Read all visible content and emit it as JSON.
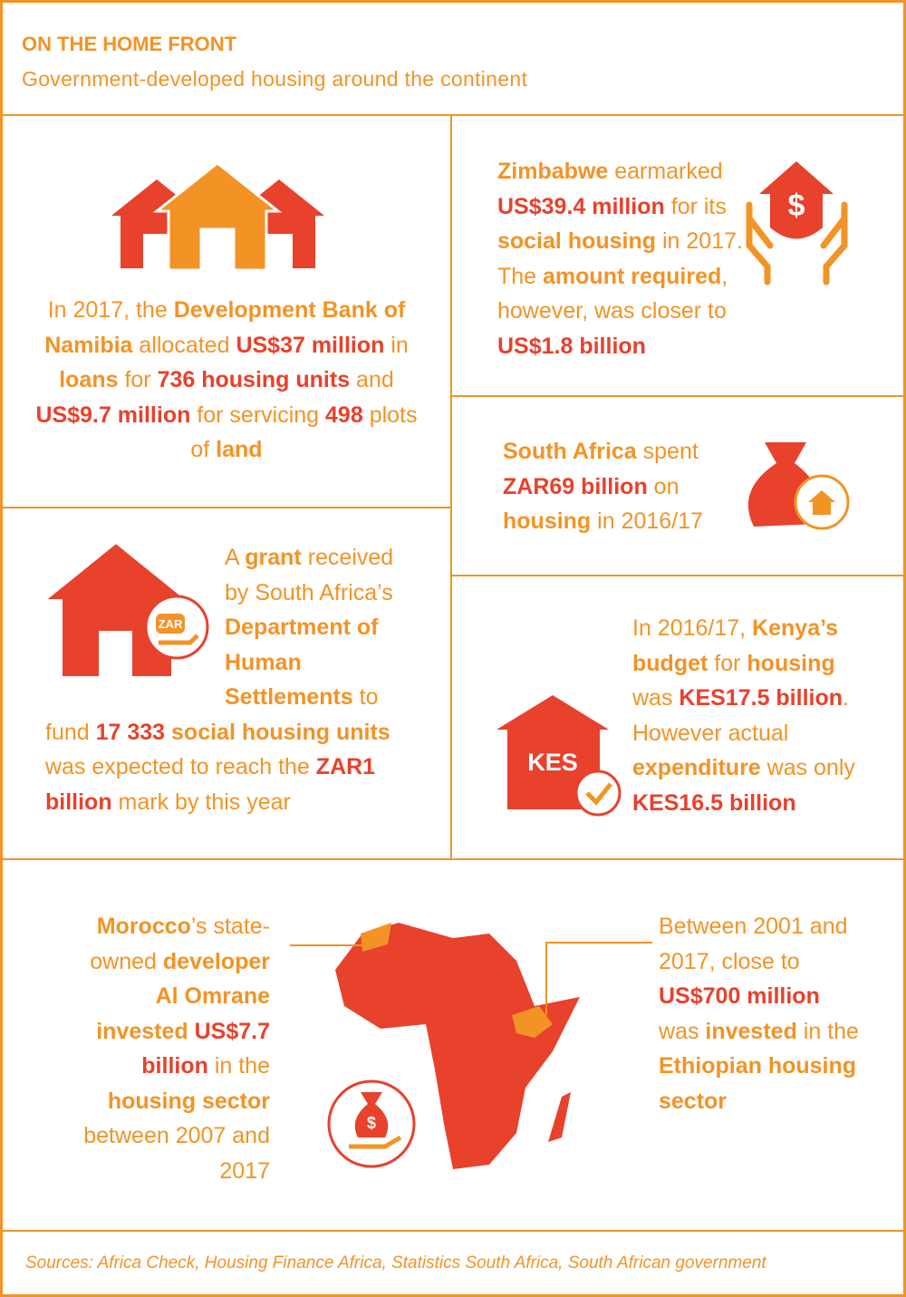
{
  "header": {
    "title": "ON THE HOME FRONT",
    "subtitle": "Government-developed housing around the continent"
  },
  "panels": [
    {
      "runs": [
        {
          "text": "In 2017, the ",
          "color": "#f39325",
          "bold": false
        },
        {
          "text": "Development Bank of Namibia",
          "color": "#f39325",
          "bold": true
        },
        {
          "text": " allocated ",
          "color": "#f39325",
          "bold": false
        },
        {
          "text": "US$37 million",
          "color": "#e8412c",
          "bold": true
        },
        {
          "text": " in ",
          "color": "#f39325",
          "bold": false
        },
        {
          "text": "loans",
          "color": "#f39325",
          "bold": true
        },
        {
          "text": " for ",
          "color": "#f39325",
          "bold": false
        },
        {
          "text": "736 housing units",
          "color": "#e8412c",
          "bold": true
        },
        {
          "text": " and ",
          "color": "#f39325",
          "bold": false
        },
        {
          "text": "US$9.7 million",
          "color": "#e8412c",
          "bold": true
        },
        {
          "text": " for servicing ",
          "color": "#f39325",
          "bold": false
        },
        {
          "text": "498",
          "color": "#e8412c",
          "bold": true
        },
        {
          "text": " plots of ",
          "color": "#f39325",
          "bold": false
        },
        {
          "text": "land",
          "color": "#f39325",
          "bold": true
        }
      ]
    },
    {
      "icon_label": "$",
      "runs": [
        {
          "text": "Zimbabwe",
          "color": "#f39325",
          "bold": true
        },
        {
          "text": " earmarked ",
          "color": "#f39325",
          "bold": false
        },
        {
          "text": "US$39.4 million",
          "color": "#e8412c",
          "bold": true
        },
        {
          "text": " for its ",
          "color": "#f39325",
          "bold": false
        },
        {
          "text": "social housing",
          "color": "#f39325",
          "bold": true
        },
        {
          "text": " in 2017. The ",
          "color": "#f39325",
          "bold": false
        },
        {
          "text": "amount required",
          "color": "#f39325",
          "bold": true
        },
        {
          "text": ", however, was closer to ",
          "color": "#f39325",
          "bold": false
        },
        {
          "text": "US$1.8 billion",
          "color": "#e8412c",
          "bold": true
        }
      ]
    },
    {
      "runs": [
        {
          "text": "South Africa",
          "color": "#f39325",
          "bold": true
        },
        {
          "text": " spent ",
          "color": "#f39325",
          "bold": false
        },
        {
          "text": "ZAR69 billion",
          "color": "#e8412c",
          "bold": true
        },
        {
          "text": " on ",
          "color": "#f39325",
          "bold": false
        },
        {
          "text": "housing",
          "color": "#f39325",
          "bold": true
        },
        {
          "text": " in 2016/17",
          "color": "#f39325",
          "bold": false
        }
      ]
    },
    {
      "icon_label": "ZAR",
      "runs": [
        {
          "text": "A ",
          "color": "#f39325",
          "bold": false
        },
        {
          "text": "grant",
          "color": "#f39325",
          "bold": true
        },
        {
          "text": " received by South Africa’s ",
          "color": "#f39325",
          "bold": false
        },
        {
          "text": "Department of Human Settlements",
          "color": "#f39325",
          "bold": true
        },
        {
          "text": " to fund ",
          "color": "#f39325",
          "bold": false
        },
        {
          "text": "17 333",
          "color": "#e8412c",
          "bold": true
        },
        {
          "text": " social housing units",
          "color": "#f39325",
          "bold": true
        },
        {
          "text": " was expected to reach the ",
          "color": "#f39325",
          "bold": false
        },
        {
          "text": "ZAR1 billion",
          "color": "#e8412c",
          "bold": true
        },
        {
          "text": " mark by this year",
          "color": "#f39325",
          "bold": false
        }
      ]
    },
    {
      "icon_label": "KES",
      "runs": [
        {
          "text": "In 2016/17, ",
          "color": "#f39325",
          "bold": false
        },
        {
          "text": "Kenya’s budget",
          "color": "#f39325",
          "bold": true
        },
        {
          "text": " for ",
          "color": "#f39325",
          "bold": false
        },
        {
          "text": "housing",
          "color": "#f39325",
          "bold": true
        },
        {
          "text": " was ",
          "color": "#f39325",
          "bold": false
        },
        {
          "text": "KES17.5 billion",
          "color": "#e8412c",
          "bold": true
        },
        {
          "text": ". However actual ",
          "color": "#f39325",
          "bold": false
        },
        {
          "text": "expenditure",
          "color": "#f39325",
          "bold": true
        },
        {
          "text": " was only ",
          "color": "#f39325",
          "bold": false
        },
        {
          "text": "KES16.5 billion",
          "color": "#e8412c",
          "bold": true
        }
      ]
    },
    {
      "icon_label": "$",
      "runs": [
        {
          "text": "Morocco",
          "color": "#f39325",
          "bold": true
        },
        {
          "text": "’s state-owned ",
          "color": "#f39325",
          "bold": false
        },
        {
          "text": "developer Al Omrane invested ",
          "color": "#f39325",
          "bold": true
        },
        {
          "text": "US$7.7 billion",
          "color": "#e8412c",
          "bold": true
        },
        {
          "text": " in the ",
          "color": "#f39325",
          "bold": false
        },
        {
          "text": "housing sector",
          "color": "#f39325",
          "bold": true
        },
        {
          "text": " between 2007 and 2017",
          "color": "#f39325",
          "bold": false
        }
      ]
    },
    {
      "runs": [
        {
          "text": "Between 2001 and 2017, close to ",
          "color": "#f39325",
          "bold": false
        },
        {
          "text": "US$700 million",
          "color": "#e8412c",
          "bold": true
        },
        {
          "text": " was ",
          "color": "#f39325",
          "bold": false
        },
        {
          "text": "invested",
          "color": "#f39325",
          "bold": true
        },
        {
          "text": " in the ",
          "color": "#f39325",
          "bold": false
        },
        {
          "text": "Ethiopian housing sector",
          "color": "#f39325",
          "bold": true
        }
      ]
    }
  ],
  "footer": {
    "sources": "Sources: Africa Check, Housing Finance Africa, Statistics South Africa, South African government"
  }
}
